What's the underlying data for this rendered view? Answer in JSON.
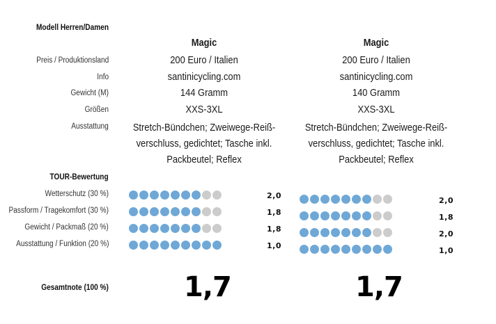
{
  "header": {
    "model_label": "Modell Herren/Damen"
  },
  "labels": {
    "price": "Preis / Produktionsland",
    "info": "Info",
    "weight": "Gewicht (M)",
    "sizes": "Größen",
    "equipment": "Ausstattung",
    "rating_title": "TOUR-Bewertung",
    "criteria": [
      "Wetterschutz (30 %)",
      "Passform / Tragekomfort (30 %)",
      "Gewicht / Packmaß (20 %)",
      "Ausstattung / Funktion (20 %)"
    ],
    "total": "Gesamtnote (100 %)"
  },
  "colors": {
    "dot_filled": "#6fa8d6",
    "dot_empty": "#cccccc"
  },
  "products": [
    {
      "name": "Magic",
      "price": "200 Euro / Italien",
      "info": "santinicycling.com",
      "weight": "144 Gramm",
      "sizes": "XXS-3XL",
      "equipment_lines": [
        "Stretch-Bündchen; Zweiwege-Reiß-",
        "verschluss, gedichtet; Tasche inkl.",
        "Packbeutel; Reflex"
      ],
      "ratings": [
        {
          "filled": 7,
          "total": 9,
          "score": "2,0"
        },
        {
          "filled": 7,
          "total": 9,
          "score": "1,8"
        },
        {
          "filled": 7,
          "total": 9,
          "score": "1,8"
        },
        {
          "filled": 9,
          "total": 9,
          "score": "1,0"
        }
      ],
      "total_score": "1,7"
    },
    {
      "name": "Magic",
      "price": "200 Euro / Italien",
      "info": "santinicycling.com",
      "weight": "140 Gramm",
      "sizes": "XXS-3XL",
      "equipment_lines": [
        "Stretch-Bündchen; Zweiwege-Reiß-",
        "verschluss, gedichtet; Tasche inkl.",
        "Packbeutel; Reflex"
      ],
      "ratings": [
        {
          "filled": 7,
          "total": 9,
          "score": "2,0"
        },
        {
          "filled": 7,
          "total": 9,
          "score": "1,8"
        },
        {
          "filled": 7,
          "total": 9,
          "score": "2,0"
        },
        {
          "filled": 9,
          "total": 9,
          "score": "1,0"
        }
      ],
      "total_score": "1,7"
    }
  ]
}
